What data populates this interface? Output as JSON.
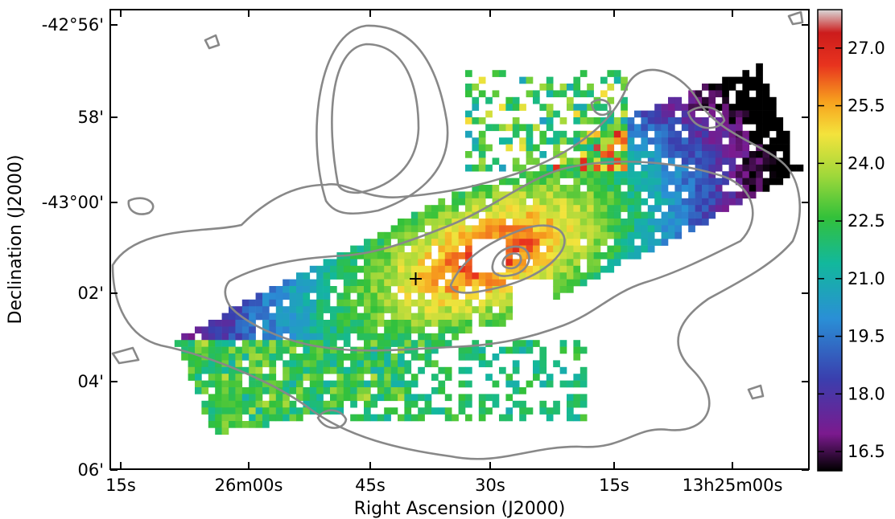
{
  "chart_data": {
    "type": "heatmap",
    "title": "",
    "xlabel": "Right Ascension (J2000)",
    "ylabel": "Declination (J2000)",
    "x_ticks": [
      "15s",
      "26m00s",
      "45s",
      "30s",
      "15s",
      "13h25m00s"
    ],
    "y_ticks": [
      "-42°56'",
      "58'",
      "-43°00'",
      "02'",
      "04'",
      "06'"
    ],
    "colorbar": {
      "range": [
        16.0,
        28.0
      ],
      "ticks": [
        "16.5",
        "18.0",
        "19.5",
        "21.0",
        "22.5",
        "24.0",
        "25.5",
        "27.0"
      ],
      "colormap": [
        "#000000",
        "#7b1a8e",
        "#3a3fae",
        "#2a8fd6",
        "#12b89c",
        "#33c13a",
        "#9fd83a",
        "#f4e33c",
        "#f7a21e",
        "#e8331e",
        "#cc1c1c",
        "#d9d9d9"
      ]
    },
    "marker": "+",
    "contour_color": "#888888"
  }
}
